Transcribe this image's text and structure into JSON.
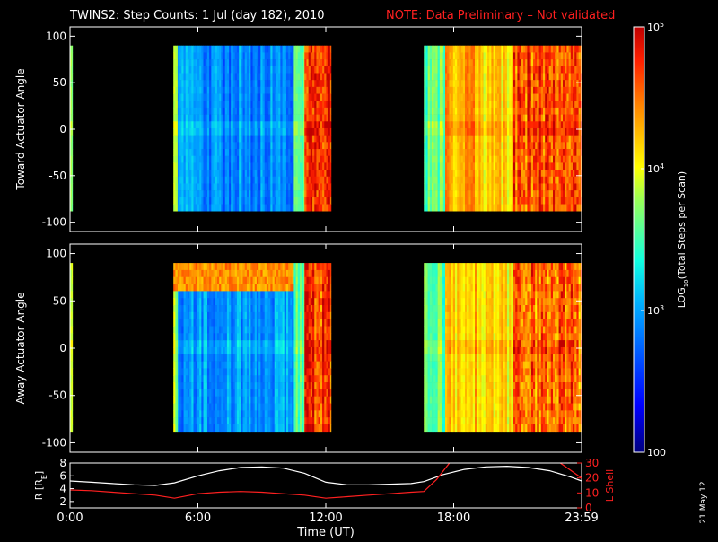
{
  "title": {
    "main": "TWINS2: Step Counts:  1 Jul (day 182), 2010",
    "note": "NOTE: Data Preliminary – Not validated",
    "note_color": "#ff2020"
  },
  "stamp": "21 May 12",
  "colorbar": {
    "label_prefix": "LOG",
    "label_sub": "10",
    "label_suffix": "(Total Steps per Scan)",
    "ticks": [
      {
        "value": 100,
        "base": "100",
        "exp": ""
      },
      {
        "value": 1000,
        "base": "10",
        "exp": "3"
      },
      {
        "value": 10000,
        "base": "10",
        "exp": "4"
      },
      {
        "value": 100000,
        "base": "10",
        "exp": "5"
      }
    ],
    "range": [
      100,
      100000
    ],
    "scale": "log"
  },
  "chart_data": [
    {
      "type": "heatmap",
      "ylabel": "Toward Actuator Angle",
      "ylim": [
        -110,
        110
      ],
      "yticks": [
        {
          "v": 100,
          "t": "100"
        },
        {
          "v": 50,
          "t": "50"
        },
        {
          "v": 0,
          "t": "0"
        },
        {
          "v": -50,
          "t": "-50"
        },
        {
          "v": -100,
          "t": "-100"
        }
      ],
      "xlim": [
        0,
        24
      ],
      "angle_range": [
        -88,
        90
      ],
      "segments": [
        {
          "start": 0.0,
          "end": 0.12,
          "base_log": 3.7
        },
        {
          "start": 4.85,
          "end": 5.05,
          "base_log": 3.8
        },
        {
          "start": 5.05,
          "end": 10.5,
          "base_log": 2.9
        },
        {
          "start": 10.5,
          "end": 11.0,
          "base_log": 3.6
        },
        {
          "start": 11.0,
          "end": 12.25,
          "base_log": 4.7
        },
        {
          "start": 16.6,
          "end": 17.6,
          "base_log": 3.6
        },
        {
          "start": 17.6,
          "end": 19.3,
          "base_log": 4.3
        },
        {
          "start": 19.3,
          "end": 20.8,
          "base_log": 4.1
        },
        {
          "start": 20.8,
          "end": 24.0,
          "base_log": 4.6
        }
      ],
      "cap_band": null
    },
    {
      "type": "heatmap",
      "ylabel": "Away Actuator Angle",
      "ylim": [
        -110,
        110
      ],
      "yticks": [
        {
          "v": 100,
          "t": "100"
        },
        {
          "v": 50,
          "t": "50"
        },
        {
          "v": 0,
          "t": "0"
        },
        {
          "v": -50,
          "t": "-50"
        },
        {
          "v": -100,
          "t": "-100"
        }
      ],
      "xlim": [
        0,
        24
      ],
      "angle_range": [
        -88,
        90
      ],
      "segments": [
        {
          "start": 0.0,
          "end": 0.12,
          "base_log": 3.7
        },
        {
          "start": 4.85,
          "end": 5.05,
          "base_log": 3.8
        },
        {
          "start": 5.05,
          "end": 10.5,
          "base_log": 2.95
        },
        {
          "start": 10.5,
          "end": 11.0,
          "base_log": 3.6
        },
        {
          "start": 11.0,
          "end": 12.25,
          "base_log": 4.7
        },
        {
          "start": 16.6,
          "end": 17.6,
          "base_log": 3.6
        },
        {
          "start": 17.6,
          "end": 19.3,
          "base_log": 4.2
        },
        {
          "start": 19.3,
          "end": 20.8,
          "base_log": 4.1
        },
        {
          "start": 20.8,
          "end": 24.0,
          "base_log": 4.5
        }
      ],
      "cap_band": {
        "start": 4.85,
        "end": 10.5,
        "angle_from": 62,
        "angle_to": 90,
        "log": 4.4
      }
    },
    {
      "type": "line",
      "ylabel": "R [R",
      "ylabel_sub": "E",
      "ylabel_close": "]",
      "y2label": "L Shell",
      "ylim": [
        1,
        8
      ],
      "y2lim": [
        0,
        30
      ],
      "yticks": [
        {
          "v": 2,
          "t": "2"
        },
        {
          "v": 4,
          "t": "4"
        },
        {
          "v": 6,
          "t": "6"
        },
        {
          "v": 8,
          "t": "8"
        }
      ],
      "y2ticks": [
        {
          "v": 0,
          "t": "0"
        },
        {
          "v": 10,
          "t": "10"
        },
        {
          "v": 20,
          "t": "20"
        },
        {
          "v": 30,
          "t": "30"
        }
      ],
      "xlabel": "Time (UT)",
      "xticks": [
        {
          "v": 0,
          "t": "0:00"
        },
        {
          "v": 6,
          "t": "6:00"
        },
        {
          "v": 12,
          "t": "12:00"
        },
        {
          "v": 18,
          "t": "18:00"
        },
        {
          "v": 24,
          "t": "23:59"
        }
      ],
      "xlim": [
        0,
        24
      ],
      "series": [
        {
          "name": "R",
          "color": "#ffffff",
          "axis": "left",
          "x": [
            0,
            1,
            2,
            3,
            4,
            4.9,
            6,
            7,
            8,
            9,
            10,
            11,
            12,
            13,
            14,
            15,
            16,
            16.6,
            17.5,
            18.5,
            19.5,
            20.5,
            21.5,
            22.5,
            23.5,
            24
          ],
          "y": [
            5.2,
            5.0,
            4.8,
            4.6,
            4.5,
            4.9,
            6.0,
            6.8,
            7.3,
            7.4,
            7.2,
            6.4,
            5.0,
            4.6,
            4.6,
            4.7,
            4.8,
            5.1,
            6.2,
            7.0,
            7.4,
            7.5,
            7.3,
            6.8,
            5.8,
            5.2
          ]
        },
        {
          "name": "L Shell",
          "color": "#ff2020",
          "axis": "right",
          "x": [
            0,
            1,
            2,
            3,
            4,
            4.9,
            6,
            7,
            8,
            9,
            10,
            11,
            12,
            13,
            14,
            15,
            16,
            16.6,
            17.2,
            17.8
          ],
          "y": [
            12,
            11.5,
            10.5,
            9.5,
            8.5,
            6.5,
            9.5,
            10.5,
            11.0,
            10.5,
            9.5,
            8.5,
            6.5,
            7.5,
            8.5,
            9.5,
            10.5,
            11.0,
            19.0,
            30.0
          ]
        },
        {
          "name": "L Shell (late)",
          "color": "#ff2020",
          "axis": "right",
          "x": [
            23.0,
            23.6,
            24.0
          ],
          "y": [
            30.0,
            24.0,
            20.0
          ]
        }
      ]
    }
  ]
}
